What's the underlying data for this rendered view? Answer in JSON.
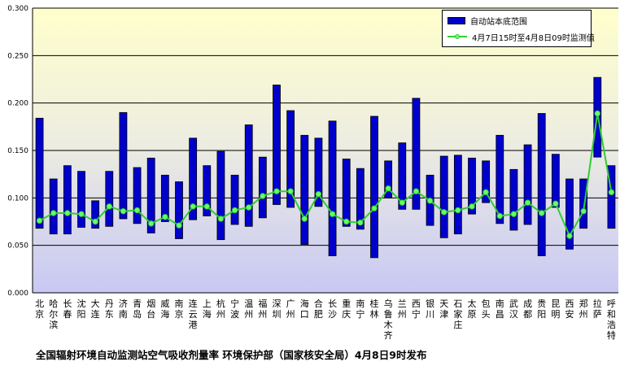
{
  "chart_data": {
    "type": "bar",
    "ylim": [
      0,
      0.3
    ],
    "yticks": [
      "0.000",
      "0.050",
      "0.100",
      "0.150",
      "0.200",
      "0.250",
      "0.300"
    ],
    "ytick_values": [
      0,
      0.05,
      0.1,
      0.15,
      0.2,
      0.25,
      0.3
    ],
    "categories": [
      "北京",
      "哈尔滨",
      "长春",
      "沈阳",
      "大连",
      "丹东",
      "济南",
      "青岛",
      "烟台",
      "威海",
      "南京",
      "连云港",
      "上海",
      "杭州",
      "宁波",
      "温州",
      "福州",
      "深圳",
      "广州",
      "海口",
      "合肥",
      "长沙",
      "重庆",
      "南宁",
      "桂林",
      "乌鲁木齐",
      "兰州",
      "西宁",
      "银川",
      "天津",
      "石家庄",
      "太原",
      "包头",
      "南昌",
      "武汉",
      "成都",
      "贵阳",
      "昆明",
      "西安",
      "郑州",
      "拉萨",
      "呼和浩特"
    ],
    "series": [
      {
        "name": "自动站本底范围",
        "kind": "range-bar",
        "low": [
          0.068,
          0.062,
          0.062,
          0.069,
          0.068,
          0.07,
          0.078,
          0.073,
          0.063,
          0.075,
          0.057,
          0.077,
          0.081,
          0.056,
          0.072,
          0.07,
          0.079,
          0.093,
          0.09,
          0.051,
          0.091,
          0.039,
          0.07,
          0.067,
          0.037,
          0.1,
          0.088,
          0.088,
          0.071,
          0.058,
          0.062,
          0.083,
          0.095,
          0.073,
          0.066,
          0.072,
          0.039,
          0.09,
          0.046,
          0.068,
          0.143,
          0.068
        ],
        "high": [
          0.184,
          0.12,
          0.134,
          0.128,
          0.097,
          0.128,
          0.19,
          0.132,
          0.142,
          0.124,
          0.117,
          0.163,
          0.134,
          0.149,
          0.124,
          0.177,
          0.143,
          0.219,
          0.192,
          0.166,
          0.163,
          0.181,
          0.141,
          0.131,
          0.186,
          0.139,
          0.158,
          0.205,
          0.124,
          0.144,
          0.145,
          0.142,
          0.139,
          0.166,
          0.13,
          0.156,
          0.189,
          0.146,
          0.12,
          0.12,
          0.227,
          0.134
        ]
      },
      {
        "name": "4月7日15时至4月8日09时监测值",
        "kind": "line",
        "values": [
          0.076,
          0.084,
          0.084,
          0.083,
          0.075,
          0.091,
          0.086,
          0.087,
          0.073,
          0.08,
          0.071,
          0.091,
          0.091,
          0.078,
          0.087,
          0.09,
          0.102,
          0.107,
          0.107,
          0.078,
          0.104,
          0.083,
          0.075,
          0.074,
          0.089,
          0.11,
          0.095,
          0.107,
          0.097,
          0.085,
          0.087,
          0.091,
          0.106,
          0.081,
          0.083,
          0.095,
          0.084,
          0.094,
          0.06,
          0.086,
          0.189,
          0.106
        ]
      }
    ],
    "colors": {
      "bar_fill": "#0000cc",
      "line": "#33cc33",
      "marker": "#66ff66",
      "plot_top": "#ffffcc",
      "plot_bottom": "#ccccff",
      "grid": "#000000"
    },
    "legend": {
      "placement": "top-right",
      "bar_label": "自动站本底范围",
      "line_label": "4月7日15时至4月8日09时监测值"
    },
    "caption": "全国辐射环境自动监测站空气吸收剂量率   环境保护部（国家核安全局）4月8日9时发布",
    "grid": true
  }
}
